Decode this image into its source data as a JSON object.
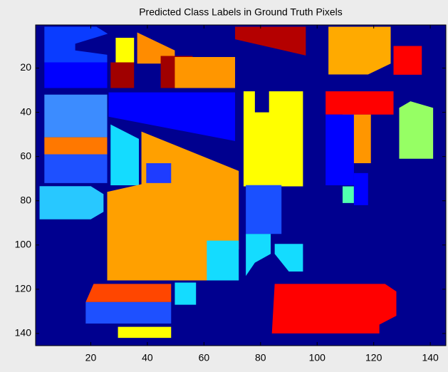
{
  "chart_data": {
    "type": "image",
    "title": "Predicted Class Labels in Ground Truth Pixels",
    "xlim": [
      0.5,
      145.5
    ],
    "ylim": [
      0.5,
      145.5
    ],
    "y_reversed": true,
    "xticks": [
      20,
      40,
      60,
      80,
      100,
      120,
      140
    ],
    "yticks": [
      20,
      40,
      60,
      80,
      100,
      120,
      140
    ],
    "background": "#00008f",
    "regions": [
      {
        "color": "#0a3cff",
        "points": [
          [
            3.6,
            1.3
          ],
          [
            22,
            1.3
          ],
          [
            26,
            4.5
          ],
          [
            14.5,
            9
          ],
          [
            14.5,
            12
          ],
          [
            25.8,
            14
          ],
          [
            25.8,
            17.4
          ],
          [
            3.6,
            17.4
          ]
        ]
      },
      {
        "color": "#0000ff",
        "points": [
          [
            3.6,
            17.4
          ],
          [
            25.8,
            17.4
          ],
          [
            25.8,
            29
          ],
          [
            3.6,
            29
          ]
        ]
      },
      {
        "color": "#3c8cff",
        "points": [
          [
            3.6,
            32
          ],
          [
            25.8,
            32
          ],
          [
            25.8,
            51.3
          ],
          [
            3.6,
            51.3
          ]
        ]
      },
      {
        "color": "#ff7800",
        "points": [
          [
            3.6,
            51.3
          ],
          [
            25.8,
            51.3
          ],
          [
            25.8,
            59
          ],
          [
            3.6,
            59
          ]
        ]
      },
      {
        "color": "#1e50ff",
        "points": [
          [
            3.6,
            59
          ],
          [
            25.8,
            59
          ],
          [
            25.8,
            72
          ],
          [
            3.6,
            72
          ]
        ]
      },
      {
        "color": "#28c8ff",
        "points": [
          [
            1.9,
            73.4
          ],
          [
            20,
            73.4
          ],
          [
            24.5,
            77
          ],
          [
            24.5,
            85
          ],
          [
            20,
            88.4
          ],
          [
            1.9,
            88.4
          ]
        ]
      },
      {
        "color": "#ffff00",
        "points": [
          [
            28.8,
            6.3
          ],
          [
            35.3,
            6.3
          ],
          [
            35.3,
            17.4
          ],
          [
            28.8,
            17.4
          ]
        ]
      },
      {
        "color": "#a00000",
        "points": [
          [
            27,
            17.4
          ],
          [
            35.3,
            17.4
          ],
          [
            35.3,
            29
          ],
          [
            27,
            29
          ]
        ]
      },
      {
        "color": "#ff8c00",
        "points": [
          [
            36.4,
            3.9
          ],
          [
            49.7,
            12
          ],
          [
            49.7,
            18
          ],
          [
            36.4,
            18
          ]
        ]
      },
      {
        "color": "#a00000",
        "points": [
          [
            44.7,
            14.5
          ],
          [
            56,
            14.5
          ],
          [
            56,
            29
          ],
          [
            44.7,
            29
          ]
        ]
      },
      {
        "color": "#ff9600",
        "points": [
          [
            49.7,
            15
          ],
          [
            71,
            15
          ],
          [
            71,
            29
          ],
          [
            49.7,
            29
          ]
        ]
      },
      {
        "color": "#b40000",
        "points": [
          [
            71,
            1.3
          ],
          [
            96,
            1.3
          ],
          [
            96,
            14.3
          ],
          [
            71,
            7
          ]
        ]
      },
      {
        "color": "#ffaa00",
        "points": [
          [
            104,
            1.3
          ],
          [
            126,
            1.3
          ],
          [
            126,
            18
          ],
          [
            118,
            22.9
          ],
          [
            104,
            22.9
          ]
        ]
      },
      {
        "color": "#ff0000",
        "points": [
          [
            127,
            10
          ],
          [
            137,
            10
          ],
          [
            137,
            23
          ],
          [
            127,
            23
          ]
        ]
      },
      {
        "color": "#0000ff",
        "points": [
          [
            26.3,
            31
          ],
          [
            71,
            31
          ],
          [
            71,
            53
          ],
          [
            26.3,
            42
          ]
        ]
      },
      {
        "color": "#ffff00",
        "points": [
          [
            74,
            30.5
          ],
          [
            78,
            30.5
          ],
          [
            78,
            40
          ],
          [
            83,
            40
          ],
          [
            83,
            30.5
          ],
          [
            95,
            30.5
          ],
          [
            95,
            73.5
          ],
          [
            74,
            73.5
          ]
        ]
      },
      {
        "color": "#ff0000",
        "points": [
          [
            103,
            30.5
          ],
          [
            127,
            30.5
          ],
          [
            127,
            41
          ],
          [
            103,
            41
          ]
        ]
      },
      {
        "color": "#ff9600",
        "points": [
          [
            109,
            41
          ],
          [
            119,
            41
          ],
          [
            119,
            63
          ],
          [
            109,
            63
          ]
        ]
      },
      {
        "color": "#96ff64",
        "points": [
          [
            133,
            35
          ],
          [
            141,
            38
          ],
          [
            141,
            61
          ],
          [
            129,
            61
          ],
          [
            129,
            38
          ]
        ]
      },
      {
        "color": "#14dcff",
        "points": [
          [
            27,
            45.5
          ],
          [
            37,
            52
          ],
          [
            37,
            73
          ],
          [
            27,
            73
          ]
        ]
      },
      {
        "color": "#ffa000",
        "points": [
          [
            37.9,
            48.7
          ],
          [
            72.3,
            66.5
          ],
          [
            72.3,
            102
          ],
          [
            63.5,
            102
          ],
          [
            63.5,
            116
          ],
          [
            25.8,
            116
          ],
          [
            25.8,
            76
          ],
          [
            37.9,
            72.5
          ]
        ]
      },
      {
        "color": "#1e3cff",
        "points": [
          [
            39.6,
            63
          ],
          [
            48.4,
            63
          ],
          [
            48.4,
            72
          ],
          [
            39.6,
            72
          ]
        ]
      },
      {
        "color": "#1a50ff",
        "points": [
          [
            74.8,
            72.9
          ],
          [
            87.4,
            72.9
          ],
          [
            87.4,
            95
          ],
          [
            74.8,
            95
          ]
        ]
      },
      {
        "color": "#14dcff",
        "points": [
          [
            74.8,
            95
          ],
          [
            83.6,
            95
          ],
          [
            83.6,
            104
          ],
          [
            78,
            108
          ],
          [
            74.8,
            114
          ]
        ]
      },
      {
        "color": "#14dcff",
        "points": [
          [
            61,
            98
          ],
          [
            72.3,
            98
          ],
          [
            72.3,
            116
          ],
          [
            61,
            116
          ]
        ]
      },
      {
        "color": "#14dcff",
        "points": [
          [
            85,
            99.5
          ],
          [
            95,
            99.5
          ],
          [
            95,
            112
          ],
          [
            90,
            112
          ],
          [
            85,
            104
          ]
        ]
      },
      {
        "color": "#14dcff",
        "points": [
          [
            49.7,
            117
          ],
          [
            57.2,
            117
          ],
          [
            57.2,
            127
          ],
          [
            49.7,
            127
          ]
        ]
      },
      {
        "color": "#ff4600",
        "points": [
          [
            21,
            117.6
          ],
          [
            48.4,
            117.6
          ],
          [
            48.4,
            125.8
          ],
          [
            18.2,
            125.8
          ]
        ]
      },
      {
        "color": "#1e50ff",
        "points": [
          [
            18.2,
            125.8
          ],
          [
            48.4,
            125.8
          ],
          [
            48.4,
            135.5
          ],
          [
            18.2,
            135.5
          ]
        ]
      },
      {
        "color": "#ffff00",
        "points": [
          [
            29.6,
            137
          ],
          [
            48.4,
            137
          ],
          [
            48.4,
            142
          ],
          [
            29.6,
            142
          ]
        ]
      },
      {
        "color": "#ff0000",
        "points": [
          [
            85,
            117.6
          ],
          [
            124,
            117.6
          ],
          [
            128,
            121
          ],
          [
            128,
            132
          ],
          [
            122,
            136
          ],
          [
            122,
            140
          ],
          [
            84,
            140
          ]
        ]
      },
      {
        "color": "#0000ff",
        "points": [
          [
            103,
            41
          ],
          [
            113,
            41
          ],
          [
            113,
            73
          ],
          [
            103,
            73
          ]
        ]
      },
      {
        "color": "#50ffb0",
        "points": [
          [
            109,
            73.5
          ],
          [
            113,
            73.5
          ],
          [
            113,
            81
          ],
          [
            109,
            81
          ]
        ]
      },
      {
        "color": "#0000ff",
        "points": [
          [
            113,
            67.5
          ],
          [
            118,
            67.5
          ],
          [
            118,
            82
          ],
          [
            113,
            82
          ]
        ]
      }
    ]
  }
}
